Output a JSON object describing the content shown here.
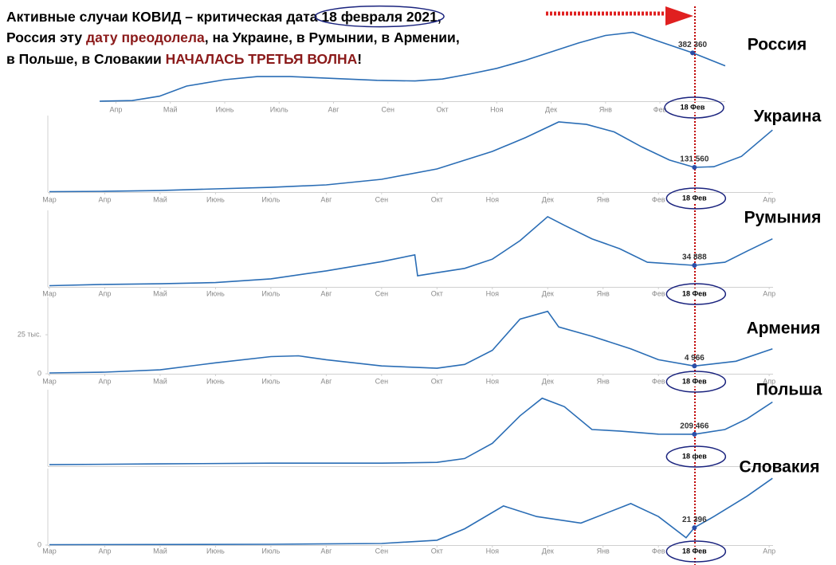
{
  "header": {
    "title_parts": [
      {
        "text": "Активные случаи КОВИД – критическая дата ",
        "color": "#000000"
      },
      {
        "text": "18 февраля 2021",
        "color": "#000000"
      },
      {
        "text": ",",
        "color": "#000000"
      },
      {
        "text": "Россия эту ",
        "color": "#000000"
      },
      {
        "text": "дату преодолела",
        "color": "#8b1a1a"
      },
      {
        "text": ", на Украине, в Румынии, в Армении,",
        "color": "#000000"
      },
      {
        "text": "в Польше, в Словакии ",
        "color": "#000000"
      },
      {
        "text": "НАЧАЛАСЬ ТРЕТЬЯ ВОЛНА",
        "color": "#8b1a1a"
      },
      {
        "text": "!",
        "color": "#000000"
      }
    ]
  },
  "chart_data": [
    {
      "type": "line",
      "title": "Россия",
      "color": "#2a6db5",
      "xlim": [
        0.7,
        12.2
      ],
      "ylim": [
        0,
        580000
      ],
      "xticks": [
        {
          "value": 1,
          "label": "Апр"
        },
        {
          "value": 2,
          "label": "Май"
        },
        {
          "value": 3,
          "label": "Июнь"
        },
        {
          "value": 4,
          "label": "Июль"
        },
        {
          "value": 5,
          "label": "Авг"
        },
        {
          "value": 6,
          "label": "Сен"
        },
        {
          "value": 7,
          "label": "Окт"
        },
        {
          "value": 8,
          "label": "Ноя"
        },
        {
          "value": 9,
          "label": "Дек"
        },
        {
          "value": 10,
          "label": "Янв"
        },
        {
          "value": 11,
          "label": "Фев"
        }
      ],
      "x": [
        0.7,
        1.3,
        1.8,
        2.3,
        3,
        3.6,
        4.2,
        5,
        5.8,
        6.5,
        7,
        7.5,
        8,
        8.5,
        9,
        9.5,
        10,
        10.5,
        11,
        11.6,
        12.2
      ],
      "values": [
        0,
        5000,
        40000,
        120000,
        170000,
        195000,
        195000,
        180000,
        165000,
        160000,
        175000,
        215000,
        260000,
        320000,
        390000,
        460000,
        520000,
        545000,
        470000,
        382360,
        280000
      ],
      "marker_x": 11.6,
      "marker_value": 382360,
      "marker_label": "382 360",
      "marker_date": "18 Фев"
    },
    {
      "type": "line",
      "title": "Украина",
      "color": "#2a6db5",
      "xlim": [
        0,
        13.07
      ],
      "ylim": [
        0,
        390000
      ],
      "xticks": [
        {
          "value": 0,
          "label": "Мар"
        },
        {
          "value": 1,
          "label": "Апр"
        },
        {
          "value": 2,
          "label": "Май"
        },
        {
          "value": 3,
          "label": "Июнь"
        },
        {
          "value": 4,
          "label": "Июль"
        },
        {
          "value": 5,
          "label": "Авг"
        },
        {
          "value": 6,
          "label": "Сен"
        },
        {
          "value": 7,
          "label": "Окт"
        },
        {
          "value": 8,
          "label": "Ноя"
        },
        {
          "value": 9,
          "label": "Дек"
        },
        {
          "value": 10,
          "label": "Янв"
        },
        {
          "value": 11,
          "label": "Фев"
        },
        {
          "value": 13,
          "label": "Апр"
        }
      ],
      "x": [
        0,
        1,
        2,
        3,
        4,
        5,
        6,
        7,
        8,
        8.6,
        9.2,
        9.7,
        10.2,
        10.7,
        11.2,
        11.65,
        12,
        12.5,
        13.06
      ],
      "values": [
        2000,
        4000,
        8000,
        17000,
        25000,
        38000,
        68000,
        123000,
        216000,
        290000,
        373000,
        360000,
        320000,
        240000,
        170000,
        131560,
        135000,
        190000,
        330000
      ],
      "marker_x": 11.65,
      "marker_value": 131560,
      "marker_label": "131 560",
      "marker_date": "18 Фев"
    },
    {
      "type": "line",
      "title": "Румыния",
      "color": "#2a6db5",
      "xlim": [
        0,
        13.07
      ],
      "ylim": [
        0,
        119000
      ],
      "xticks": [
        {
          "value": 0,
          "label": "Мар"
        },
        {
          "value": 1,
          "label": "Апр"
        },
        {
          "value": 2,
          "label": "Май"
        },
        {
          "value": 3,
          "label": "Июнь"
        },
        {
          "value": 4,
          "label": "Июль"
        },
        {
          "value": 5,
          "label": "Авг"
        },
        {
          "value": 6,
          "label": "Сен"
        },
        {
          "value": 7,
          "label": "Окт"
        },
        {
          "value": 8,
          "label": "Ноя"
        },
        {
          "value": 9,
          "label": "Дек"
        },
        {
          "value": 10,
          "label": "Янв"
        },
        {
          "value": 11,
          "label": "Фев"
        },
        {
          "value": 13,
          "label": "Апр"
        }
      ],
      "x": [
        0,
        1,
        2,
        3,
        4,
        5,
        6,
        6.6,
        6.65,
        7,
        7.5,
        8,
        8.5,
        9,
        9.3,
        9.8,
        10.3,
        10.8,
        11.65,
        12.2,
        12.6,
        13.06
      ],
      "values": [
        2000,
        4000,
        5000,
        7000,
        13000,
        26000,
        41000,
        52000,
        18000,
        23000,
        30000,
        45000,
        75000,
        114000,
        100000,
        78000,
        62000,
        40000,
        34888,
        40000,
        58000,
        78000
      ],
      "marker_x": 11.65,
      "marker_value": 34888,
      "marker_label": "34 888",
      "marker_date": "18 Фев"
    },
    {
      "type": "line",
      "title": "Армения",
      "color": "#2a6db5",
      "xlim": [
        0,
        13.07
      ],
      "ylim": [
        0,
        47000
      ],
      "yticks": [
        0,
        {
          "value": 25000,
          "label": "25 тыс."
        }
      ],
      "xticks": [
        {
          "value": 0,
          "label": "Мар"
        },
        {
          "value": 1,
          "label": "Апр"
        },
        {
          "value": 2,
          "label": "Май"
        },
        {
          "value": 3,
          "label": "Июнь"
        },
        {
          "value": 4,
          "label": "Июль"
        },
        {
          "value": 5,
          "label": "Авг"
        },
        {
          "value": 6,
          "label": "Сен"
        },
        {
          "value": 7,
          "label": "Окт"
        },
        {
          "value": 8,
          "label": "Ноя"
        },
        {
          "value": 9,
          "label": "Дек"
        },
        {
          "value": 10,
          "label": "Янв"
        },
        {
          "value": 11,
          "label": "Фев"
        },
        {
          "value": 13,
          "label": "Апр"
        }
      ],
      "x": [
        0,
        1,
        2,
        3,
        4,
        4.5,
        5,
        6,
        7,
        7.5,
        8,
        8.5,
        9,
        9.2,
        9.8,
        10.5,
        11,
        11.65,
        12.4,
        13.06
      ],
      "values": [
        500,
        1000,
        2500,
        7000,
        11000,
        11500,
        9000,
        5000,
        3500,
        6000,
        15000,
        35000,
        40000,
        30000,
        24000,
        16000,
        9000,
        4966,
        8000,
        16000
      ],
      "marker_x": 11.65,
      "marker_value": 4966,
      "marker_label": "4 966",
      "marker_date": "18 Фев"
    },
    {
      "type": "line",
      "title": "Польша",
      "color": "#2a6db5",
      "xlim": [
        0,
        13.07
      ],
      "ylim": [
        0,
        480000
      ],
      "x": [
        0,
        2,
        4,
        6,
        7,
        7.5,
        8,
        8.5,
        8.9,
        9.3,
        9.8,
        10.3,
        11,
        11.65,
        12.2,
        12.6,
        13.06
      ],
      "values": [
        10000,
        15000,
        20000,
        20000,
        25000,
        50000,
        150000,
        330000,
        445000,
        390000,
        240000,
        230000,
        210000,
        209466,
        240000,
        310000,
        420000
      ],
      "marker_x": 11.65,
      "marker_value": 209466,
      "marker_label": "209 466",
      "marker_date": "18 фев"
    },
    {
      "type": "line",
      "title": "Словакия",
      "color": "#2a6db5",
      "xlim": [
        0,
        13.07
      ],
      "ylim": [
        0,
        90000
      ],
      "yticks": [
        0
      ],
      "xticks": [
        {
          "value": 0,
          "label": "Мар"
        },
        {
          "value": 1,
          "label": "Апр"
        },
        {
          "value": 2,
          "label": "Май"
        },
        {
          "value": 3,
          "label": "Июнь"
        },
        {
          "value": 4,
          "label": "Июль"
        },
        {
          "value": 5,
          "label": "Авг"
        },
        {
          "value": 6,
          "label": "Сен"
        },
        {
          "value": 7,
          "label": "Окт"
        },
        {
          "value": 8,
          "label": "Ноя"
        },
        {
          "value": 9,
          "label": "Дек"
        },
        {
          "value": 10,
          "label": "Янв"
        },
        {
          "value": 11,
          "label": "Фев"
        },
        {
          "value": 13,
          "label": "Апр"
        }
      ],
      "x": [
        0,
        4,
        6,
        7,
        7.5,
        8.2,
        8.8,
        9.6,
        10.5,
        11,
        11.5,
        11.65,
        12,
        12.6,
        13.06
      ],
      "values": [
        500,
        1000,
        2000,
        6000,
        20000,
        48000,
        35000,
        27000,
        51000,
        35000,
        9000,
        21396,
        35000,
        60000,
        82000
      ],
      "marker_x": 11.65,
      "marker_value": 21396,
      "marker_label": "21 396",
      "marker_date": "18 Фев"
    }
  ]
}
